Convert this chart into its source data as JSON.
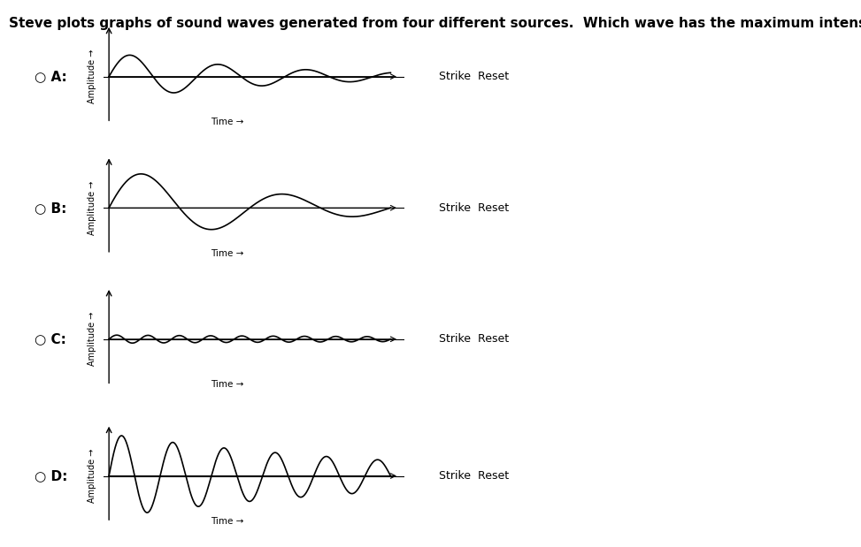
{
  "title": "Steve plots graphs of sound waves generated from four different sources.  Which wave has the maximum intensity?",
  "title_fontsize": 11,
  "title_fontweight": "bold",
  "background_color": "#ffffff",
  "wave_color": "#000000",
  "axis_color": "#000000",
  "options": [
    "A",
    "B",
    "C",
    "D"
  ],
  "waves": {
    "A": {
      "amplitude": 0.9,
      "frequency": 3.2,
      "decay": 0.18,
      "num_cycles": 3.2
    },
    "B": {
      "amplitude": 1.7,
      "frequency": 2.0,
      "decay": 0.18,
      "num_cycles": 2.5
    },
    "C": {
      "amplitude": 0.15,
      "frequency": 9.0,
      "decay": 0.05,
      "num_cycles": 8.5
    },
    "D": {
      "amplitude": 1.7,
      "frequency": 5.5,
      "decay": 0.1,
      "num_cycles": 5.5
    }
  },
  "strike_reset_text": "Strike  Reset",
  "time_label": "Time →",
  "amplitude_label": "Amplitude →"
}
